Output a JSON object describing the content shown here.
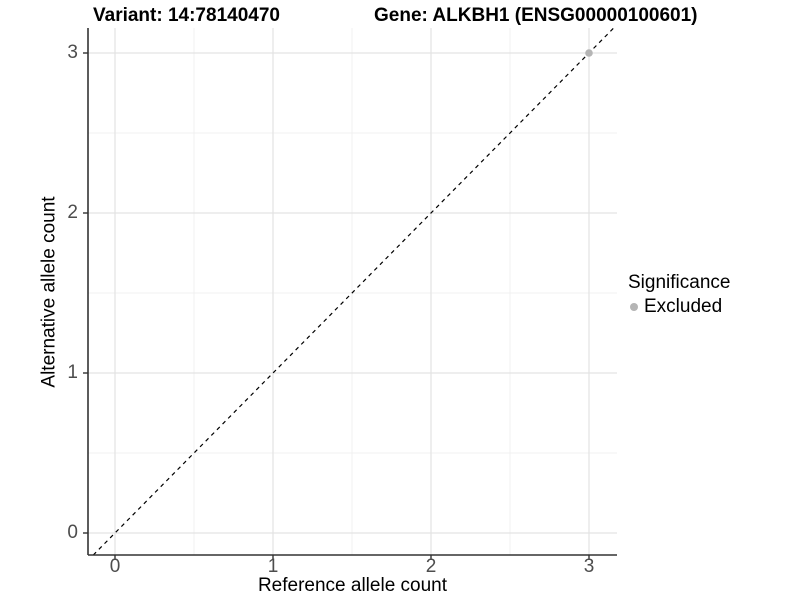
{
  "header": {
    "variant_title": "Variant: 14:78140470",
    "gene_title": "Gene: ALKBH1 (ENSG00000100601)"
  },
  "legend": {
    "title": "Significance",
    "items": [
      {
        "label": "Excluded",
        "color": "#b5b5b5"
      }
    ]
  },
  "chart_data": {
    "type": "scatter",
    "title": "Variant: 14:78140470   Gene: ALKBH1 (ENSG00000100601)",
    "xlabel": "Reference allele count",
    "ylabel": "Alternative allele count",
    "xlim": [
      -0.17,
      3.18
    ],
    "ylim": [
      -0.14,
      3.16
    ],
    "x_ticks": [
      0,
      1,
      2,
      3
    ],
    "y_ticks": [
      0,
      1,
      2,
      3
    ],
    "x_minor_ticks": [
      0.5,
      1.5,
      2.5
    ],
    "y_minor_ticks": [
      0.5,
      1.5,
      2.5
    ],
    "grid": true,
    "legend_position": "right",
    "series": [
      {
        "name": "Excluded",
        "color": "#b5b5b5",
        "points": [
          {
            "x": 3,
            "y": 3
          }
        ]
      }
    ],
    "reference_line": {
      "slope": 1,
      "intercept": 0,
      "style": "dashed",
      "color": "#000000"
    }
  },
  "colors": {
    "grid_major": "#e3e3e3",
    "grid_minor": "#f0f0f0",
    "axis_line": "#333333",
    "tick_mark": "#333333",
    "tick_text": "#4d4d4d",
    "point": "#b5b5b5"
  }
}
